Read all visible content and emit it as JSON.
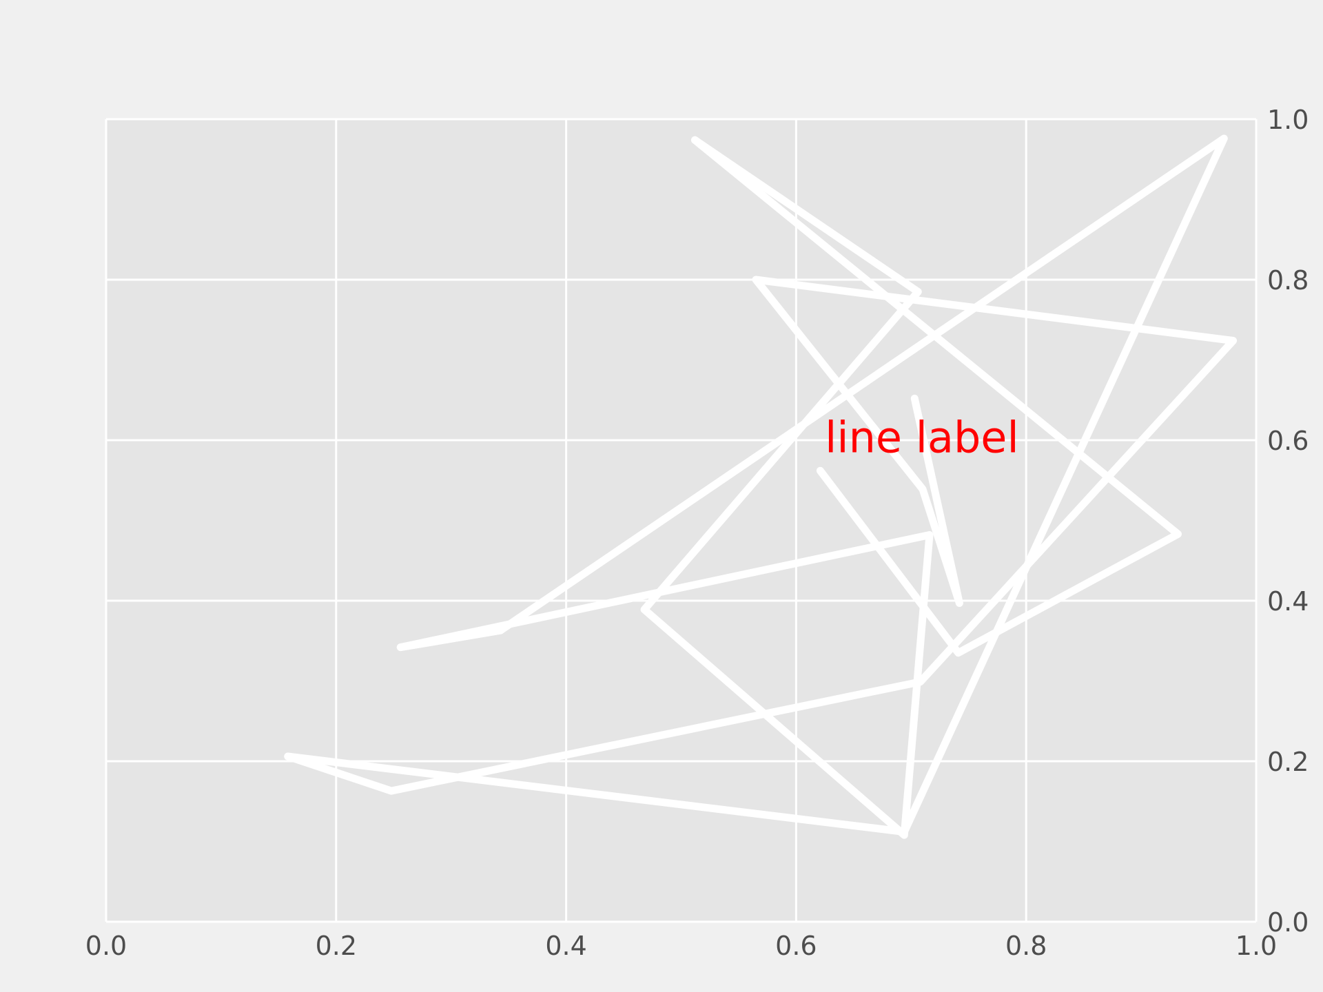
{
  "chart_data": {
    "type": "line",
    "title": "",
    "xlabel": "",
    "ylabel": "",
    "xlim": [
      0.0,
      1.0
    ],
    "ylim": [
      0.0,
      1.0
    ],
    "x_ticks": [
      "0.0",
      "0.2",
      "0.4",
      "0.6",
      "0.8",
      "1.0"
    ],
    "y_ticks": [
      "0.0",
      "0.2",
      "0.4",
      "0.6",
      "0.8",
      "1.0"
    ],
    "y_axis_side": "right",
    "grid": true,
    "legend": "none",
    "series": [
      {
        "color": "#ffffff",
        "x": [
          0.256,
          0.343,
          0.972,
          0.694,
          0.158,
          0.248,
          0.708,
          0.98,
          0.565,
          0.71,
          0.742,
          0.703
        ],
        "y": [
          0.342,
          0.363,
          0.976,
          0.112,
          0.206,
          0.163,
          0.299,
          0.724,
          0.8,
          0.539,
          0.397,
          0.652
        ]
      },
      {
        "color": "#ffffff",
        "x": [
          0.512,
          0.706,
          0.468,
          0.694,
          0.716,
          0.256,
          0.343
        ],
        "y": [
          0.974,
          0.785,
          0.389,
          0.108,
          0.482,
          0.342,
          0.363
        ]
      },
      {
        "color": "#ffffff",
        "x": [
          0.512,
          0.932,
          0.741,
          0.621
        ],
        "y": [
          0.974,
          0.483,
          0.335,
          0.562
        ]
      }
    ],
    "annotations": [
      {
        "text": "line label",
        "x": 0.625,
        "y": 0.585,
        "color": "#ff0000"
      }
    ],
    "colors": {
      "background": "#f0f0f0",
      "plot_area": "#e5e5e5",
      "grid": "#ffffff",
      "tick_text": "#4d4d4d"
    }
  }
}
